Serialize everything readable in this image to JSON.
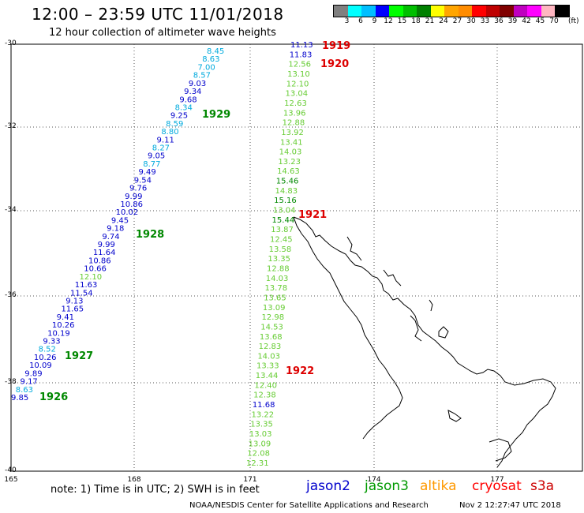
{
  "title": "12:00 – 23:59 UTC 11/01/2018",
  "subtitle": "12 hour collection of altimeter wave heights",
  "legend": {
    "colors": [
      "#808080",
      "#00ffff",
      "#00bfff",
      "#0000ff",
      "#00ff00",
      "#00bf00",
      "#008000",
      "#ffff00",
      "#ffa500",
      "#ff8c00",
      "#ff0000",
      "#bf0000",
      "#800000",
      "#bf00bf",
      "#ff00ff",
      "#ffb6c1",
      "#000000"
    ],
    "labels": [
      "3",
      "6",
      "9",
      "12",
      "15",
      "18",
      "21",
      "24",
      "27",
      "30",
      "33",
      "36",
      "39",
      "42",
      "45",
      "70"
    ],
    "unit": "(ft)"
  },
  "axes": {
    "lat_labels": [
      "-30",
      "-32",
      "-34",
      "-36",
      "-38",
      "-40"
    ],
    "lon_labels": [
      "165",
      "168",
      "171",
      "174",
      "177"
    ]
  },
  "note": "note: 1) Time is in UTC; 2) SWH is in feet",
  "satellites": [
    {
      "name": "jason2",
      "color": "#0000cc"
    },
    {
      "name": "jason3",
      "color": "#009900"
    },
    {
      "name": "altika",
      "color": "#ff9900"
    },
    {
      "name": "cryosat",
      "color": "#ff0000"
    },
    {
      "name": "s3a",
      "color": "#cc0000"
    }
  ],
  "footer": "NOAA/NESDIS Center for Satellite Applications and Research",
  "footer_time": "Nov  2 12:27:47 UTC 2018",
  "pass_labels": [
    {
      "text": "1919",
      "color": "#dd0000"
    },
    {
      "text": "1920",
      "color": "#dd0000"
    },
    {
      "text": "1929",
      "color": "#008800"
    },
    {
      "text": "1921",
      "color": "#dd0000"
    },
    {
      "text": "1928",
      "color": "#008800"
    },
    {
      "text": "1927",
      "color": "#008800"
    },
    {
      "text": "1922",
      "color": "#dd0000"
    },
    {
      "text": "1926",
      "color": "#008800"
    }
  ],
  "tracks": {
    "track_1929": [
      {
        "v": "8.45",
        "c": "#00aadd"
      },
      {
        "v": "8.63",
        "c": "#00aadd"
      },
      {
        "v": "7.00",
        "c": "#00aadd"
      },
      {
        "v": "8.57",
        "c": "#00aadd"
      },
      {
        "v": "9.03",
        "c": "#0000cc"
      },
      {
        "v": "9.34",
        "c": "#0000cc"
      },
      {
        "v": "9.68",
        "c": "#0000cc"
      },
      {
        "v": "8.34",
        "c": "#00aadd"
      },
      {
        "v": "9.25",
        "c": "#0000cc"
      },
      {
        "v": "8.59",
        "c": "#00aadd"
      },
      {
        "v": "8.80",
        "c": "#00aadd"
      },
      {
        "v": "9.11",
        "c": "#0000cc"
      },
      {
        "v": "8.27",
        "c": "#00aadd"
      },
      {
        "v": "9.05",
        "c": "#0000cc"
      },
      {
        "v": "8.77",
        "c": "#00aadd"
      },
      {
        "v": "9.49",
        "c": "#0000cc"
      },
      {
        "v": "9.54",
        "c": "#0000cc"
      },
      {
        "v": "9.76",
        "c": "#0000cc"
      },
      {
        "v": "9.99",
        "c": "#0000cc"
      },
      {
        "v": "10.86",
        "c": "#0000cc"
      },
      {
        "v": "10.02",
        "c": "#0000cc"
      },
      {
        "v": "9.45",
        "c": "#0000cc"
      },
      {
        "v": "9.18",
        "c": "#0000cc"
      },
      {
        "v": "9.74",
        "c": "#0000cc"
      },
      {
        "v": "9.99",
        "c": "#0000cc"
      },
      {
        "v": "11.64",
        "c": "#0000cc"
      },
      {
        "v": "10.86",
        "c": "#0000cc"
      },
      {
        "v": "10.66",
        "c": "#0000cc"
      },
      {
        "v": "12.10",
        "c": "#66cc33"
      },
      {
        "v": "11.63",
        "c": "#0000cc"
      },
      {
        "v": "11.54",
        "c": "#0000cc"
      },
      {
        "v": "9.13",
        "c": "#0000cc"
      },
      {
        "v": "11.65",
        "c": "#0000cc"
      },
      {
        "v": "9.41",
        "c": "#0000cc"
      },
      {
        "v": "10.26",
        "c": "#0000cc"
      },
      {
        "v": "10.19",
        "c": "#0000cc"
      },
      {
        "v": "9.33",
        "c": "#0000cc"
      },
      {
        "v": "8.52",
        "c": "#00aadd"
      },
      {
        "v": "10.26",
        "c": "#0000cc"
      },
      {
        "v": "10.09",
        "c": "#0000cc"
      },
      {
        "v": "9.89",
        "c": "#0000cc"
      },
      {
        "v": "9.17",
        "c": "#0000cc"
      },
      {
        "v": "8.63",
        "c": "#00aadd"
      },
      {
        "v": "9.85",
        "c": "#0000cc"
      }
    ],
    "track_1920": [
      {
        "v": "11.13",
        "c": "#0000cc"
      },
      {
        "v": "11.83",
        "c": "#0000cc"
      },
      {
        "v": "12.56",
        "c": "#66cc33"
      },
      {
        "v": "13.10",
        "c": "#66cc33"
      },
      {
        "v": "12.10",
        "c": "#66cc33"
      },
      {
        "v": "13.04",
        "c": "#66cc33"
      },
      {
        "v": "12.63",
        "c": "#66cc33"
      },
      {
        "v": "13.96",
        "c": "#66cc33"
      },
      {
        "v": "12.88",
        "c": "#66cc33"
      },
      {
        "v": "13.92",
        "c": "#66cc33"
      },
      {
        "v": "13.41",
        "c": "#66cc33"
      },
      {
        "v": "14.03",
        "c": "#66cc33"
      },
      {
        "v": "13.23",
        "c": "#66cc33"
      },
      {
        "v": "14.63",
        "c": "#66cc33"
      },
      {
        "v": "15.46",
        "c": "#008800"
      },
      {
        "v": "14.83",
        "c": "#66cc33"
      },
      {
        "v": "15.16",
        "c": "#008800"
      },
      {
        "v": "13.04",
        "c": "#66cc33"
      },
      {
        "v": "15.44",
        "c": "#008800"
      },
      {
        "v": "13.87",
        "c": "#66cc33"
      },
      {
        "v": "12.45",
        "c": "#66cc33"
      },
      {
        "v": "13.58",
        "c": "#66cc33"
      },
      {
        "v": "13.35",
        "c": "#66cc33"
      },
      {
        "v": "12.88",
        "c": "#66cc33"
      },
      {
        "v": "14.03",
        "c": "#66cc33"
      },
      {
        "v": "13.78",
        "c": "#66cc33"
      },
      {
        "v": "13.65",
        "c": "#66cc33"
      },
      {
        "v": "13.09",
        "c": "#66cc33"
      },
      {
        "v": "12.98",
        "c": "#66cc33"
      },
      {
        "v": "14.53",
        "c": "#66cc33"
      },
      {
        "v": "13.68",
        "c": "#66cc33"
      },
      {
        "v": "12.83",
        "c": "#66cc33"
      },
      {
        "v": "14.03",
        "c": "#66cc33"
      },
      {
        "v": "13.33",
        "c": "#66cc33"
      },
      {
        "v": "13.44",
        "c": "#66cc33"
      },
      {
        "v": "12.40",
        "c": "#66cc33"
      },
      {
        "v": "12.38",
        "c": "#66cc33"
      },
      {
        "v": "11.68",
        "c": "#0000cc"
      },
      {
        "v": "13.22",
        "c": "#66cc33"
      },
      {
        "v": "13.35",
        "c": "#66cc33"
      },
      {
        "v": "13.03",
        "c": "#66cc33"
      },
      {
        "v": "13.09",
        "c": "#66cc33"
      },
      {
        "v": "12.08",
        "c": "#66cc33"
      },
      {
        "v": "12.31",
        "c": "#66cc33"
      }
    ]
  }
}
